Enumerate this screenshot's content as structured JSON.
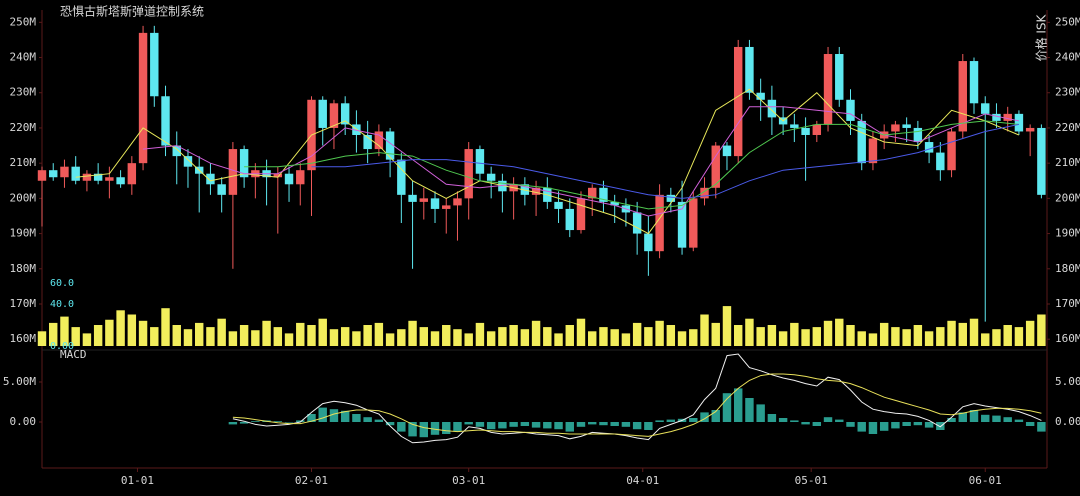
{
  "chart_data": {
    "type": "candlestick",
    "title": "恐惧古斯塔斯弹道控制系统",
    "y_label": "价格 ISK",
    "up_color": "#f05a5a",
    "down_color": "#5ee8f0",
    "xlim": [
      0,
      179
    ],
    "xticks": [
      {
        "value": 17,
        "label": "01-01"
      },
      {
        "value": 48,
        "label": "02-01"
      },
      {
        "value": 76,
        "label": "03-01"
      },
      {
        "value": 107,
        "label": "04-01"
      },
      {
        "value": 137,
        "label": "05-01"
      },
      {
        "value": 168,
        "label": "06-01"
      }
    ],
    "ylim": [
      157.5,
      253.5
    ],
    "yticks": [
      {
        "value": 160,
        "label": "160M"
      },
      {
        "value": 170,
        "label": "170M"
      },
      {
        "value": 180,
        "label": "180M"
      },
      {
        "value": 190,
        "label": "190M"
      },
      {
        "value": 200,
        "label": "200M"
      },
      {
        "value": 210,
        "label": "210M"
      },
      {
        "value": 220,
        "label": "220M"
      },
      {
        "value": 230,
        "label": "230M"
      },
      {
        "value": 240,
        "label": "240M"
      },
      {
        "value": 250,
        "label": "250M"
      }
    ],
    "x": [
      0,
      2,
      4,
      6,
      8,
      10,
      12,
      14,
      16,
      18,
      20,
      22,
      24,
      26,
      28,
      30,
      32,
      34,
      36,
      38,
      40,
      42,
      44,
      46,
      48,
      50,
      52,
      54,
      56,
      58,
      60,
      62,
      64,
      66,
      68,
      70,
      72,
      74,
      76,
      78,
      80,
      82,
      84,
      86,
      88,
      90,
      92,
      94,
      96,
      98,
      100,
      102,
      104,
      106,
      108,
      110,
      112,
      114,
      116,
      118,
      120,
      122,
      124,
      126,
      128,
      130,
      132,
      134,
      136,
      138,
      140,
      142,
      144,
      146,
      148,
      150,
      152,
      154,
      156,
      158,
      160,
      162,
      164,
      166,
      168,
      170,
      172,
      174,
      176,
      178
    ],
    "open": [
      205,
      208,
      206,
      209,
      205,
      207,
      205,
      206,
      204,
      210,
      247,
      229,
      215,
      212,
      209,
      207,
      204,
      201,
      214,
      206,
      208,
      206,
      207,
      204,
      208,
      228,
      220,
      227,
      221,
      218,
      214,
      219,
      211,
      201,
      199,
      200,
      197,
      198,
      200,
      214,
      207,
      205,
      202,
      204,
      201,
      203,
      199,
      197,
      191,
      200,
      203,
      199,
      198,
      196,
      190,
      185,
      201,
      199,
      186,
      200,
      203,
      215,
      212,
      243,
      230,
      228,
      223,
      221,
      220,
      218,
      221,
      241,
      228,
      222,
      210,
      217,
      219,
      221,
      220,
      216,
      213,
      208,
      219,
      239,
      227,
      224,
      222,
      224,
      219,
      220
    ],
    "high": [
      209,
      210,
      211,
      212,
      208,
      210,
      209,
      208,
      212,
      249,
      249,
      232,
      219,
      214,
      212,
      210,
      206,
      216,
      215,
      210,
      211,
      209,
      209,
      210,
      229,
      229,
      228,
      229,
      225,
      222,
      221,
      220,
      213,
      205,
      203,
      202,
      200,
      202,
      216,
      215,
      209,
      207,
      206,
      206,
      205,
      206,
      202,
      200,
      202,
      204,
      205,
      201,
      200,
      199,
      195,
      204,
      203,
      205,
      202,
      206,
      216,
      216,
      245,
      245,
      234,
      232,
      226,
      224,
      223,
      222,
      243,
      243,
      231,
      224,
      219,
      221,
      222,
      223,
      222,
      218,
      216,
      220,
      241,
      240,
      229,
      227,
      226,
      225,
      221,
      221
    ],
    "low": [
      192,
      205,
      203,
      204,
      202,
      204,
      200,
      203,
      201,
      208,
      226,
      212,
      204,
      203,
      196,
      201,
      196,
      180,
      203,
      200,
      198,
      190,
      199,
      198,
      195,
      215,
      214,
      218,
      213,
      210,
      212,
      206,
      193,
      180,
      194,
      193,
      190,
      188,
      194,
      205,
      200,
      196,
      194,
      198,
      195,
      197,
      193,
      189,
      190,
      195,
      196,
      193,
      192,
      184,
      178,
      183,
      196,
      184,
      185,
      198,
      200,
      208,
      210,
      228,
      222,
      218,
      218,
      216,
      205,
      216,
      219,
      226,
      218,
      208,
      208,
      214,
      216,
      216,
      214,
      210,
      205,
      206,
      217,
      224,
      165,
      220,
      219,
      218,
      212,
      200
    ],
    "close": [
      208,
      206,
      209,
      205,
      207,
      205,
      206,
      204,
      210,
      247,
      229,
      215,
      212,
      209,
      207,
      204,
      201,
      214,
      206,
      208,
      206,
      207,
      204,
      208,
      228,
      220,
      227,
      221,
      218,
      214,
      219,
      211,
      201,
      199,
      200,
      197,
      198,
      200,
      214,
      207,
      205,
      202,
      204,
      201,
      203,
      199,
      197,
      191,
      200,
      203,
      199,
      198,
      196,
      190,
      185,
      201,
      199,
      186,
      200,
      203,
      215,
      212,
      243,
      230,
      228,
      223,
      221,
      220,
      218,
      221,
      241,
      228,
      222,
      210,
      217,
      219,
      221,
      220,
      216,
      213,
      208,
      219,
      239,
      227,
      224,
      222,
      224,
      219,
      220,
      201
    ],
    "moving_averages": {
      "x": [
        6,
        12,
        18,
        24,
        30,
        36,
        42,
        48,
        54,
        60,
        66,
        72,
        78,
        84,
        90,
        96,
        102,
        108,
        114,
        120,
        126,
        132,
        138,
        144,
        150,
        156,
        162,
        168,
        174
      ],
      "series": [
        {
          "color": "#e8e85a",
          "values": [
            206,
            207,
            220,
            214,
            205,
            207,
            206,
            218,
            222,
            215,
            205,
            200,
            205,
            203,
            201,
            198,
            195,
            190,
            203,
            225,
            231,
            222,
            230,
            220,
            216,
            215,
            225,
            222,
            218
          ]
        },
        {
          "color": "#d060d8",
          "values": [
            null,
            null,
            214,
            215,
            210,
            207,
            207,
            212,
            220,
            218,
            211,
            204,
            203,
            204,
            202,
            200,
            198,
            195,
            197,
            212,
            226,
            226,
            225,
            224,
            218,
            216,
            220,
            224,
            222
          ]
        },
        {
          "color": "#50c850",
          "values": [
            null,
            null,
            null,
            null,
            null,
            209,
            209,
            210,
            212,
            213,
            212,
            208,
            205,
            204,
            203,
            201,
            199,
            197,
            198,
            204,
            213,
            219,
            221,
            221,
            218,
            219,
            221,
            222,
            221
          ]
        },
        {
          "color": "#4a5ae8",
          "values": [
            null,
            null,
            null,
            null,
            null,
            null,
            null,
            209,
            209,
            210,
            211,
            211,
            210,
            209,
            207,
            205,
            203,
            201,
            200,
            201,
            205,
            208,
            209,
            210,
            211,
            213,
            216,
            219,
            221
          ]
        }
      ]
    },
    "volume": {
      "color": "#f2ee5c",
      "ylim": [
        0,
        60
      ],
      "yticks": [
        {
          "value": 0,
          "label": "0.00"
        },
        {
          "value": 40,
          "label": "40.0"
        },
        {
          "value": 60,
          "label": "60.0"
        }
      ],
      "values": [
        14,
        22,
        28,
        18,
        12,
        20,
        25,
        34,
        30,
        24,
        18,
        36,
        20,
        16,
        22,
        18,
        26,
        14,
        20,
        15,
        24,
        18,
        12,
        22,
        20,
        26,
        16,
        18,
        14,
        20,
        22,
        12,
        16,
        24,
        18,
        14,
        20,
        16,
        12,
        22,
        14,
        18,
        20,
        16,
        24,
        18,
        12,
        20,
        26,
        14,
        18,
        16,
        12,
        22,
        18,
        24,
        20,
        14,
        16,
        30,
        22,
        38,
        20,
        26,
        18,
        20,
        14,
        22,
        16,
        18,
        24,
        26,
        20,
        14,
        12,
        22,
        18,
        16,
        20,
        14,
        18,
        24,
        22,
        26,
        12,
        16,
        20,
        18,
        24,
        30
      ]
    },
    "macd": {
      "label": "MACD",
      "ylim": [
        -5.75,
        8.75
      ],
      "yticks": [
        {
          "value": 5,
          "label": "5.00M"
        },
        {
          "value": 0,
          "label": "0.00"
        }
      ],
      "histogram": {
        "color": "#2a9d8f",
        "values": [
          null,
          null,
          null,
          null,
          null,
          null,
          null,
          null,
          null,
          null,
          null,
          null,
          null,
          null,
          null,
          null,
          null,
          -0.3,
          -0.2,
          0.1,
          0.2,
          0.1,
          0.0,
          0.2,
          1.0,
          1.8,
          1.6,
          1.4,
          1.0,
          0.6,
          0.3,
          -0.4,
          -1.2,
          -1.8,
          -1.9,
          -1.6,
          -1.5,
          -1.2,
          -0.3,
          -0.6,
          -0.9,
          -0.8,
          -0.6,
          -0.5,
          -0.7,
          -0.8,
          -0.9,
          -1.2,
          -0.6,
          -0.3,
          -0.4,
          -0.5,
          -0.6,
          -0.9,
          -1.0,
          0.2,
          0.3,
          0.4,
          0.5,
          1.2,
          1.5,
          3.6,
          4.2,
          3.0,
          2.2,
          1.0,
          0.5,
          0.2,
          -0.3,
          -0.5,
          0.6,
          0.3,
          -0.6,
          -1.2,
          -1.5,
          -1.1,
          -0.8,
          -0.5,
          -0.4,
          -0.7,
          -1.0,
          0.5,
          1.2,
          1.5,
          0.9,
          0.8,
          0.6,
          0.3,
          -0.5,
          -1.2
        ]
      },
      "series": [
        {
          "color": "#f0f0f0",
          "values": [
            null,
            null,
            null,
            null,
            null,
            null,
            null,
            null,
            null,
            null,
            null,
            null,
            null,
            null,
            null,
            null,
            null,
            0.4,
            0.1,
            -0.3,
            -0.5,
            -0.4,
            -0.3,
            0.0,
            1.2,
            2.3,
            2.6,
            2.4,
            2.1,
            1.5,
            1.0,
            -0.5,
            -1.8,
            -2.6,
            -2.5,
            -2.3,
            -2.2,
            -1.9,
            -0.6,
            -0.8,
            -1.3,
            -1.5,
            -1.4,
            -1.3,
            -1.5,
            -1.6,
            -1.7,
            -2.1,
            -1.8,
            -1.3,
            -1.4,
            -1.5,
            -1.7,
            -2.0,
            -2.2,
            -0.8,
            -0.3,
            0.2,
            0.9,
            2.8,
            4.2,
            8.3,
            8.5,
            6.8,
            6.4,
            5.9,
            5.5,
            5.2,
            4.8,
            4.5,
            5.6,
            5.3,
            4.0,
            2.5,
            1.6,
            1.3,
            1.1,
            1.0,
            0.7,
            0.2,
            -0.6,
            0.6,
            1.9,
            2.3,
            2.0,
            1.8,
            1.6,
            1.3,
            0.8,
            0.2
          ]
        },
        {
          "color": "#e8e05a",
          "values": [
            null,
            null,
            null,
            null,
            null,
            null,
            null,
            null,
            null,
            null,
            null,
            null,
            null,
            null,
            null,
            null,
            null,
            0.6,
            0.5,
            0.3,
            0.1,
            -0.1,
            -0.2,
            -0.2,
            0.1,
            0.5,
            1.0,
            1.3,
            1.5,
            1.5,
            1.4,
            1.0,
            0.4,
            -0.3,
            -0.7,
            -0.9,
            -1.1,
            -1.2,
            -1.1,
            -1.0,
            -1.1,
            -1.2,
            -1.2,
            -1.3,
            -1.3,
            -1.4,
            -1.4,
            -1.5,
            -1.5,
            -1.5,
            -1.5,
            -1.5,
            -1.6,
            -1.7,
            -1.8,
            -1.5,
            -1.2,
            -0.8,
            -0.3,
            0.4,
            1.3,
            2.9,
            4.2,
            5.2,
            5.8,
            6.0,
            6.0,
            5.9,
            5.7,
            5.4,
            5.2,
            5.1,
            4.8,
            4.3,
            3.7,
            3.1,
            2.7,
            2.3,
            1.9,
            1.5,
            1.0,
            0.9,
            1.1,
            1.4,
            1.6,
            1.7,
            1.7,
            1.6,
            1.4,
            1.1
          ]
        }
      ]
    }
  }
}
